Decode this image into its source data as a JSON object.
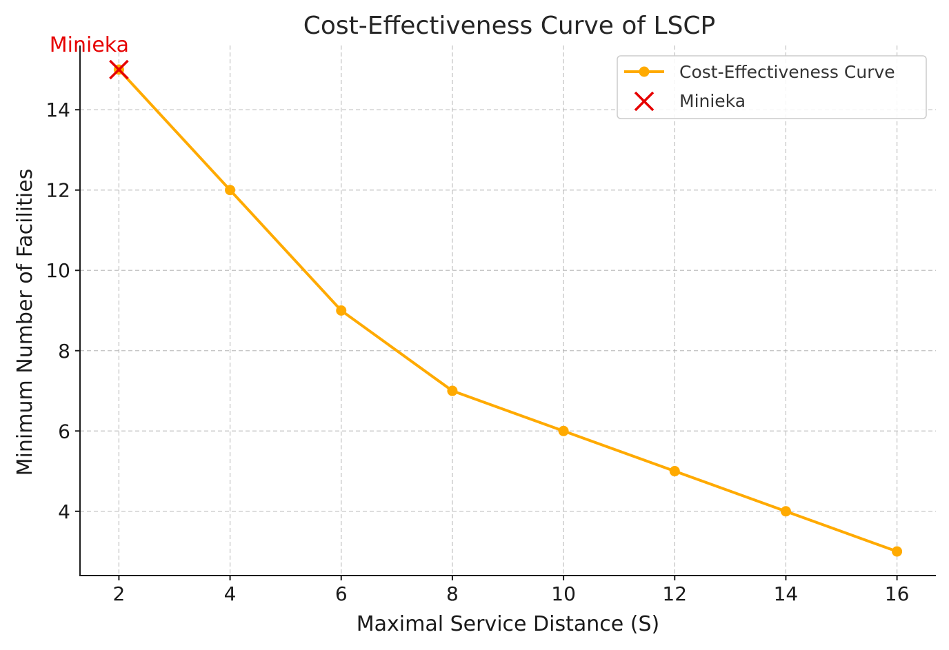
{
  "chart_data": {
    "type": "line",
    "title": "Cost-Effectiveness Curve of LSCP",
    "xlabel": "Maximal Service Distance (S)",
    "ylabel": "Minimum Number of Facilities",
    "xlim": [
      1.3,
      16.7
    ],
    "ylim": [
      2.4,
      15.6
    ],
    "x_ticks": [
      2,
      4,
      6,
      8,
      10,
      12,
      14,
      16
    ],
    "y_ticks": [
      4,
      6,
      8,
      10,
      12,
      14
    ],
    "grid": true,
    "legend_position": "top-right",
    "series": [
      {
        "name": "Cost-Effectiveness Curve",
        "type": "line",
        "marker": "circle",
        "color": "#FFAA00",
        "x": [
          2,
          4,
          6,
          8,
          10,
          12,
          14,
          16
        ],
        "y": [
          15,
          12,
          9,
          7,
          6,
          5,
          4,
          3
        ]
      },
      {
        "name": "Minieka",
        "type": "scatter",
        "marker": "x",
        "color": "#E60000",
        "x": [
          2
        ],
        "y": [
          15
        ]
      }
    ],
    "annotations": [
      {
        "text": "Minieka",
        "x": 2,
        "y": 15,
        "color": "#E60000"
      }
    ]
  }
}
